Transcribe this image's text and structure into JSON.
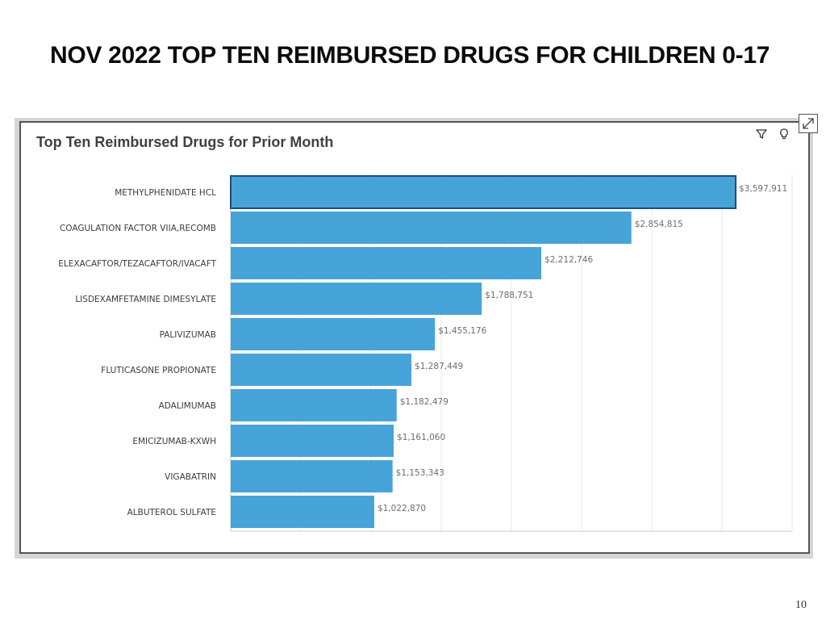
{
  "slide": {
    "title": "NOV 2022 TOP TEN REIMBURSED DRUGS FOR CHILDREN 0-17",
    "page_number": "10"
  },
  "panel": {
    "title": "Top Ten Reimbursed Drugs for Prior Month",
    "tools": [
      "filter-icon",
      "lightbulb-icon"
    ],
    "expand_icon": "expand-icon"
  },
  "colors": {
    "bar": "#47a4d8",
    "bar_highlight_border": "#1f4f74",
    "gridline": "#e9e9e9",
    "label": "#3c3c3c",
    "value_label": "#6d6d6d"
  },
  "chart_data": {
    "type": "bar",
    "orientation": "horizontal",
    "title": "Top Ten Reimbursed Drugs for Prior Month",
    "categories": [
      "METHYLPHENIDATE HCL",
      "COAGULATION FACTOR VIIA,RECOMB",
      "ELEXACAFTOR/TEZACAFTOR/IVACAFT",
      "LISDEXAMFETAMINE DIMESYLATE",
      "PALIVIZUMAB",
      "FLUTICASONE PROPIONATE",
      "ADALIMUMAB",
      "EMICIZUMAB-KXWH",
      "VIGABATRIN",
      "ALBUTEROL SULFATE"
    ],
    "values": [
      3597911,
      2854815,
      2212746,
      1788751,
      1455176,
      1287449,
      1182479,
      1161060,
      1153343,
      1022870
    ],
    "value_labels": [
      "$3,597,911",
      "$2,854,815",
      "$2,212,746",
      "$1,788,751",
      "$1,455,176",
      "$1,287,449",
      "$1,182,479",
      "$1,161,060",
      "$1,153,343",
      "$1,022,870"
    ],
    "highlighted_index": 0,
    "xlim": [
      0,
      4000000
    ],
    "grid_step": 500000,
    "xlabel": "",
    "ylabel": "",
    "grid": true,
    "legend": "none"
  }
}
